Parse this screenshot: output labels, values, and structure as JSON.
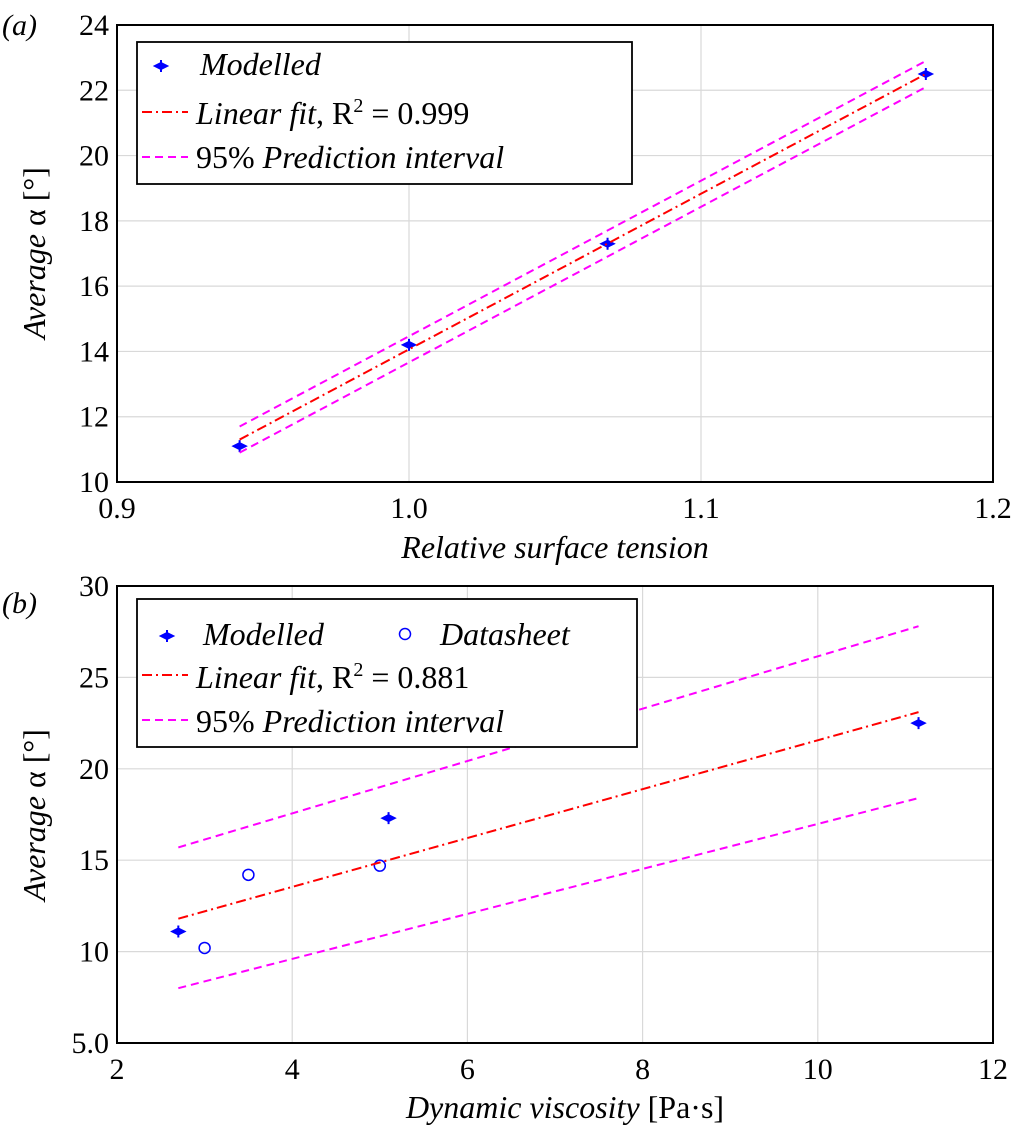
{
  "chart_data": [
    {
      "panel": "(a)",
      "type": "scatter",
      "xlabel": "Relative surface tension",
      "ylabel": "Average α [°]",
      "ylabel_parts": {
        "italic": "Average",
        "plain": " α [°]"
      },
      "xlim": [
        0.9,
        1.2
      ],
      "ylim": [
        10,
        24
      ],
      "xticks": [
        0.9,
        1.0,
        1.1,
        1.2
      ],
      "xtick_labels": [
        "0.9",
        "1.0",
        "1.1",
        "1.2"
      ],
      "yticks": [
        10,
        12,
        14,
        16,
        18,
        20,
        22,
        24
      ],
      "ytick_labels": [
        "10",
        "12",
        "14",
        "16",
        "18",
        "20",
        "22",
        "24"
      ],
      "grid": true,
      "legend_position": "top-left",
      "legend": [
        {
          "key": "modelled",
          "label": "Modelled"
        },
        {
          "key": "fit",
          "label_italic": "Linear fit",
          "label_plain": ", R",
          "sup": "2",
          "label_tail": " = 0.999"
        },
        {
          "key": "pi",
          "label_plain": "95% ",
          "label_italic": "Prediction interval"
        }
      ],
      "series": [
        {
          "name": "Modelled",
          "style": "filled-marker",
          "color": "#0000ff",
          "x": [
            0.942,
            1.0,
            1.068,
            1.177
          ],
          "y": [
            11.1,
            14.2,
            17.3,
            22.5
          ]
        },
        {
          "name": "Linear fit",
          "style": "dash-dot",
          "color": "#ff0000",
          "x": [
            0.942,
            1.177
          ],
          "y": [
            11.3,
            22.5
          ]
        },
        {
          "name": "95% Prediction interval (upper)",
          "style": "dashed",
          "color": "#ff00ff",
          "x": [
            0.942,
            1.177
          ],
          "y": [
            11.7,
            22.9
          ]
        },
        {
          "name": "95% Prediction interval (lower)",
          "style": "dashed",
          "color": "#ff00ff",
          "x": [
            0.942,
            1.177
          ],
          "y": [
            10.9,
            22.1
          ]
        }
      ]
    },
    {
      "panel": "(b)",
      "type": "scatter",
      "xlabel": "Dynamic viscosity [Pa·s]",
      "xlabel_parts": {
        "italic": "Dynamic viscosity",
        "plain": " [Pa·s]"
      },
      "ylabel": "Average α [°]",
      "ylabel_parts": {
        "italic": "Average",
        "plain": " α [°]"
      },
      "xlim": [
        2,
        12
      ],
      "ylim": [
        5,
        30
      ],
      "xticks": [
        2,
        4,
        6,
        8,
        10,
        12
      ],
      "xtick_labels": [
        "2",
        "4",
        "6",
        "8",
        "10",
        "12"
      ],
      "yticks": [
        5,
        10,
        15,
        20,
        25,
        30
      ],
      "ytick_labels": [
        "5.0",
        "10",
        "15",
        "20",
        "25",
        "30"
      ],
      "grid": true,
      "legend_position": "top-left",
      "legend": [
        {
          "key": "modelled",
          "label": "Modelled"
        },
        {
          "key": "datasheet",
          "label": "Datasheet"
        },
        {
          "key": "fit",
          "label_italic": "Linear fit",
          "label_plain": ", R",
          "sup": "2",
          "label_tail": " = 0.881"
        },
        {
          "key": "pi",
          "label_plain": "95% ",
          "label_italic": "Prediction interval"
        }
      ],
      "series": [
        {
          "name": "Modelled",
          "style": "filled-marker",
          "color": "#0000ff",
          "x": [
            2.7,
            5.1,
            11.15
          ],
          "y": [
            11.1,
            17.3,
            22.5
          ]
        },
        {
          "name": "Datasheet",
          "style": "open-circle",
          "color": "#0000ff",
          "x": [
            3.0,
            3.5,
            5.0
          ],
          "y": [
            10.2,
            14.2,
            14.7
          ]
        },
        {
          "name": "Linear fit",
          "style": "dash-dot",
          "color": "#ff0000",
          "x": [
            2.7,
            11.15
          ],
          "y": [
            11.8,
            23.1
          ]
        },
        {
          "name": "95% Prediction interval (upper)",
          "style": "dashed",
          "color": "#ff00ff",
          "x": [
            2.7,
            11.15
          ],
          "y": [
            15.7,
            27.8
          ]
        },
        {
          "name": "95% Prediction interval (lower)",
          "style": "dashed",
          "color": "#ff00ff",
          "x": [
            2.7,
            11.15
          ],
          "y": [
            8.0,
            18.4
          ]
        }
      ]
    }
  ]
}
